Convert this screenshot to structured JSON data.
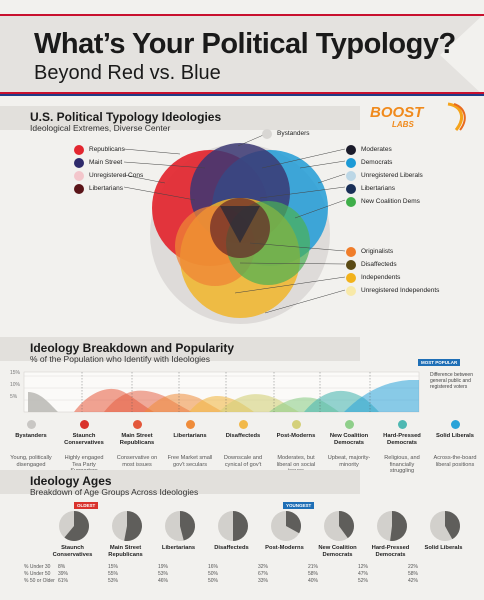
{
  "header": {
    "title": "What’s Your Political Typology?",
    "subtitle": "Beyond Red vs. Blue"
  },
  "logo": {
    "line1": "BOOST",
    "line2": "LABS"
  },
  "ideologies": {
    "title": "U.S. Political Typology Ideologies",
    "subtitle": "Ideological Extremes, Diverse Center",
    "left_legend": [
      {
        "label": "Republicans",
        "color": "#e3262f"
      },
      {
        "label": "Main Street",
        "color": "#2e2a6b"
      },
      {
        "label": "Unregistered Cons",
        "color": "#f3c6cb"
      },
      {
        "label": "Libertarians",
        "color": "#5a1418"
      }
    ],
    "top_legend": {
      "label": "Bystanders",
      "color": "#d8d6d3"
    },
    "right_legend": [
      {
        "label": "Moderates",
        "color": "#1b1b2a"
      },
      {
        "label": "Democrats",
        "color": "#1c9ad6"
      },
      {
        "label": "Unregistered Liberals",
        "color": "#bcd7e6"
      },
      {
        "label": "Libertarians",
        "color": "#1a2f57"
      },
      {
        "label": "New Coalition Dems",
        "color": "#3fae49"
      }
    ],
    "bottom_legend": [
      {
        "label": "Originalists",
        "color": "#f07d2a"
      },
      {
        "label": "Disaffecteds",
        "color": "#5a4a14"
      },
      {
        "label": "Independents",
        "color": "#f2b21b"
      },
      {
        "label": "Unregistered Independents",
        "color": "#f8e9a8"
      }
    ]
  },
  "breakdown": {
    "title": "Ideology Breakdown and Popularity",
    "subtitle": "% of the Population who Identify with Ideologies",
    "most_popular": "MOST POPULAR",
    "y_ticks": [
      "15%",
      "10%",
      "5%"
    ],
    "note": "Difference between general public and registered voters",
    "items": [
      {
        "label": "Bystanders",
        "desc": "Young, politically disengaged",
        "color": "#c9c7c4"
      },
      {
        "label": "Staunch Conservatives",
        "desc": "Highly engaged Tea Party Supporters",
        "color": "#d9322c"
      },
      {
        "label": "Main Street Republicans",
        "desc": "Conservative on most issues",
        "color": "#e3573a"
      },
      {
        "label": "Libertarians",
        "desc": "Free Market small gov't seculars",
        "color": "#ef8c3a"
      },
      {
        "label": "Disaffecteds",
        "desc": "Downscale and cynical of gov't",
        "color": "#f2b94a"
      },
      {
        "label": "Post-Moderns",
        "desc": "Moderates, but liberal on social issues",
        "color": "#d4d07a"
      },
      {
        "label": "New Coalition Democrats",
        "desc": "Upbeat, majority-minority",
        "color": "#8fcf8a"
      },
      {
        "label": "Hard-Pressed Democrats",
        "desc": "Religious, and financially struggling",
        "color": "#4fb8b2"
      },
      {
        "label": "Solid Liberals",
        "desc": "Across-the-board liberal positions",
        "color": "#2aa3d8"
      }
    ]
  },
  "ages": {
    "title": "Ideology Ages",
    "subtitle": "Breakdown of Age Groups Across Ideologies",
    "oldest_tag": "OLDEST",
    "youngest_tag": "YOUNGEST",
    "row_labels": [
      "% Under 30",
      "% Under 50",
      "% 50 or Older"
    ],
    "groups": [
      {
        "label": "Staunch Conservatives",
        "values": [
          "8%",
          "39%",
          "61%"
        ],
        "old_share": 0.61
      },
      {
        "label": "Main Street Republicans",
        "values": [
          "15%",
          "55%",
          "53%"
        ],
        "old_share": 0.53
      },
      {
        "label": "Libertarians",
        "values": [
          "19%",
          "53%",
          "46%"
        ],
        "old_share": 0.46
      },
      {
        "label": "Disaffecteds",
        "values": [
          "16%",
          "50%",
          "50%"
        ],
        "old_share": 0.5
      },
      {
        "label": "Post-Moderns",
        "values": [
          "32%",
          "67%",
          "33%"
        ],
        "old_share": 0.33
      },
      {
        "label": "New Coalition Democrats",
        "values": [
          "21%",
          "58%",
          "40%"
        ],
        "old_share": 0.4
      },
      {
        "label": "Hard-Pressed Democrats",
        "values": [
          "12%",
          "47%",
          "52%"
        ],
        "old_share": 0.52
      },
      {
        "label": "Solid Liberals",
        "values": [
          "22%",
          "58%",
          "42%"
        ],
        "old_share": 0.42
      }
    ]
  }
}
